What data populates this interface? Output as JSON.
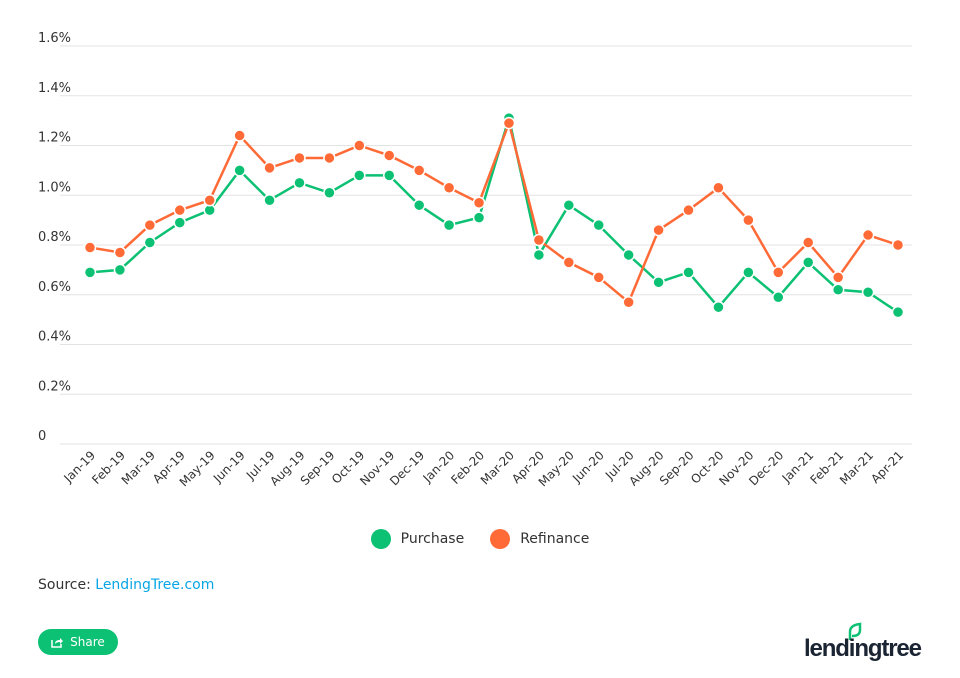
{
  "chart_data": {
    "type": "line",
    "title": "",
    "xlabel": "",
    "ylabel": "",
    "ylim": [
      0,
      1.6
    ],
    "yticks": [
      "0",
      "0.2%",
      "0.4%",
      "0.6%",
      "0.8%",
      "1.0%",
      "1.2%",
      "1.4%",
      "1.6%"
    ],
    "ytick_values": [
      0,
      0.2,
      0.4,
      0.6,
      0.8,
      1.0,
      1.2,
      1.4,
      1.6
    ],
    "grid": true,
    "legend_position": "bottom",
    "categories": [
      "Jan-19",
      "Feb-19",
      "Mar-19",
      "Apr-19",
      "May-19",
      "Jun-19",
      "Jul-19",
      "Aug-19",
      "Sep-19",
      "Oct-19",
      "Nov-19",
      "Dec-19",
      "Jan-20",
      "Feb-20",
      "Mar-20",
      "Apr-20",
      "May-20",
      "Jun-20",
      "Jul-20",
      "Aug-20",
      "Sep-20",
      "Oct-20",
      "Nov-20",
      "Dec-20",
      "Jan-21",
      "Feb-21",
      "Mar-21",
      "Apr-21"
    ],
    "series": [
      {
        "name": "Purchase",
        "color": "#0cc173",
        "values": [
          0.69,
          0.7,
          0.81,
          0.89,
          0.94,
          1.1,
          0.98,
          1.05,
          1.01,
          1.08,
          1.08,
          0.96,
          0.88,
          0.91,
          1.31,
          0.76,
          0.96,
          0.88,
          0.76,
          0.65,
          0.69,
          0.55,
          0.69,
          0.59,
          0.73,
          0.62,
          0.61,
          0.53
        ]
      },
      {
        "name": "Refinance",
        "color": "#ff6a36",
        "values": [
          0.79,
          0.77,
          0.88,
          0.94,
          0.98,
          1.24,
          1.11,
          1.15,
          1.15,
          1.2,
          1.16,
          1.1,
          1.03,
          0.97,
          1.29,
          0.82,
          0.73,
          0.67,
          0.57,
          0.86,
          0.94,
          1.03,
          0.9,
          0.69,
          0.81,
          0.67,
          0.84,
          0.8
        ]
      }
    ]
  },
  "footer": {
    "source_label": "Source:",
    "source_link": "LendingTree.com",
    "share_label": "Share",
    "logo_text": "lendingtree"
  },
  "icons": {
    "share": "share-icon",
    "logo": "leaf-icon"
  }
}
